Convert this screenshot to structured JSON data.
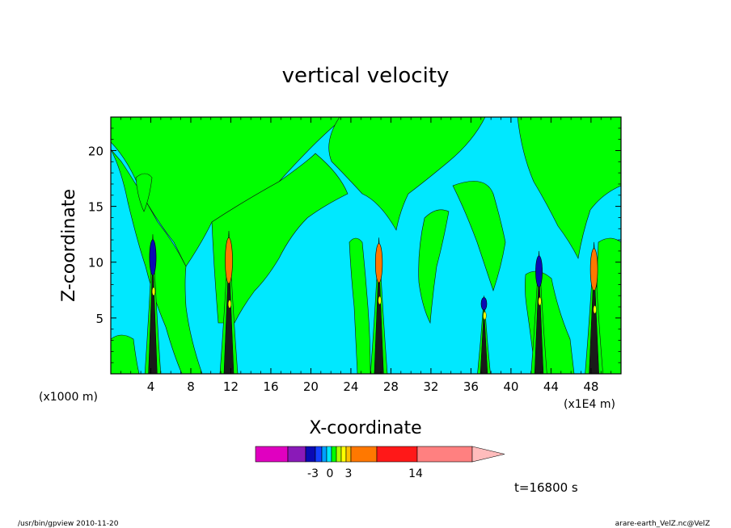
{
  "chart_data": {
    "type": "heatmap",
    "title": "vertical velocity",
    "xlabel": "X-coordinate",
    "ylabel": "Z-coordinate",
    "x_unit_left": "(x1000 m)",
    "x_unit_right": "(x1E4 m)",
    "xlim": [
      0,
      51
    ],
    "ylim": [
      0,
      23
    ],
    "x_ticks": [
      4,
      8,
      12,
      16,
      20,
      24,
      28,
      32,
      36,
      40,
      44,
      48
    ],
    "y_ticks": [
      5,
      10,
      15,
      20
    ],
    "plumes": [
      {
        "x": 4.2,
        "top": 12.5,
        "strength": 0.8
      },
      {
        "x": 11.8,
        "top": 12.8,
        "strength": 1.0
      },
      {
        "x": 26.8,
        "top": 12.2,
        "strength": 0.9
      },
      {
        "x": 37.3,
        "top": 7.0,
        "strength": 0.5
      },
      {
        "x": 42.8,
        "top": 11.0,
        "strength": 0.8
      },
      {
        "x": 48.3,
        "top": 11.8,
        "strength": 1.0
      }
    ],
    "colorbar": {
      "colors": [
        "#e000c0",
        "#8a1ab8",
        "#0a0ab4",
        "#1440ff",
        "#00a0ff",
        "#00e8ff",
        "#00ff00",
        "#b0ff00",
        "#ffff00",
        "#ffc000",
        "#ff7800",
        "#ff1818",
        "#ff8080",
        "#ffbcbc"
      ],
      "tick_labels": [
        "-3",
        "0",
        "3",
        "14"
      ]
    },
    "time_label": "t=16800 s"
  },
  "footer": {
    "left": "/usr/bin/gpview   2010-11-20",
    "right": "arare-earth_VelZ.nc@VelZ"
  }
}
